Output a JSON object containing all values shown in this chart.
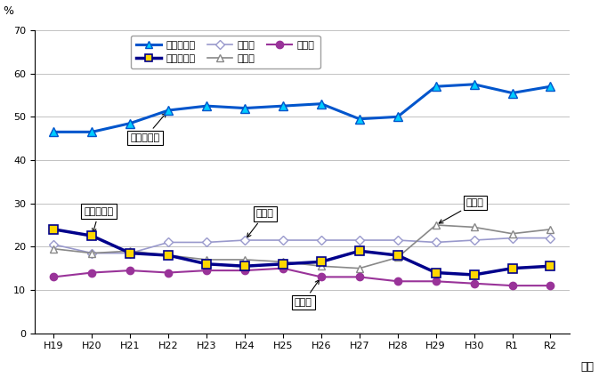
{
  "years": [
    "H19",
    "H20",
    "H21",
    "H22",
    "H23",
    "H24",
    "H25",
    "H26",
    "H27",
    "H28",
    "H29",
    "H30",
    "R1",
    "R2"
  ],
  "gimu": [
    46.5,
    46.5,
    48.5,
    51.5,
    52.5,
    52.0,
    52.5,
    53.0,
    49.5,
    50.0,
    57.0,
    57.5,
    55.5,
    57.0
  ],
  "toshi": [
    24.0,
    22.5,
    18.5,
    18.0,
    16.0,
    15.5,
    16.0,
    16.5,
    19.0,
    18.0,
    14.0,
    13.5,
    15.0,
    15.5
  ],
  "fujo": [
    20.5,
    18.5,
    18.5,
    21.0,
    21.0,
    21.5,
    21.5,
    21.5,
    21.5,
    21.5,
    21.0,
    21.5,
    22.0,
    22.0
  ],
  "jinken": [
    19.5,
    18.5,
    19.0,
    18.0,
    17.0,
    17.0,
    16.5,
    15.5,
    15.0,
    17.5,
    25.0,
    24.5,
    23.0,
    24.0
  ],
  "kosai": [
    13.0,
    14.0,
    14.5,
    14.0,
    14.5,
    14.5,
    15.0,
    13.0,
    13.0,
    12.0,
    12.0,
    11.5,
    11.0,
    11.0
  ],
  "color_gimu": "#0055CC",
  "color_toshi": "#00008B",
  "color_fujo": "#9999CC",
  "color_jinken": "#888888",
  "color_kosai": "#993399",
  "label_gimu": "義務的経費",
  "label_toshi": "投資的経費",
  "label_fujo": "扶助費",
  "label_jinken": "人件費",
  "label_kosai": "公債費",
  "ann_gimu_text": "義務的経費",
  "ann_toshi_text": "投資的経費",
  "ann_fujo_text": "扶助費",
  "ann_jinken_text": "人件費",
  "ann_kosai_text": "公債費",
  "xlabel": "年度",
  "ylabel": "%",
  "ylim": [
    0,
    70
  ],
  "yticks": [
    0,
    10,
    20,
    30,
    40,
    50,
    60,
    70
  ]
}
